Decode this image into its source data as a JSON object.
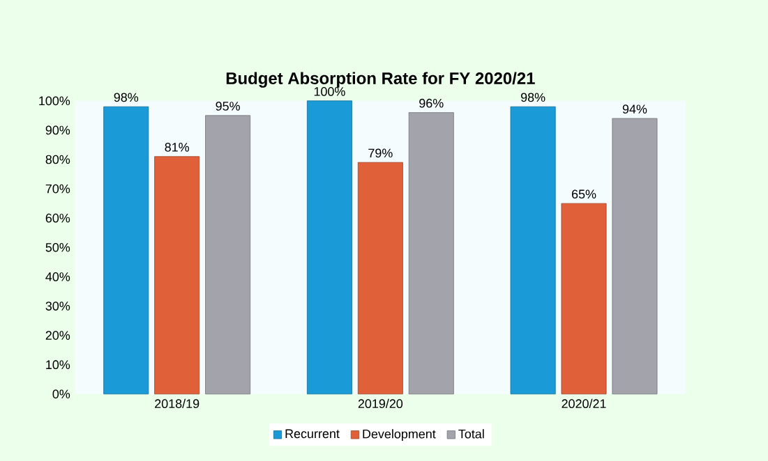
{
  "chart_data": {
    "type": "bar",
    "title": "Budget Absorption Rate for FY 2020/21",
    "categories": [
      "2018/19",
      "2019/20",
      "2020/21"
    ],
    "series": [
      {
        "name": "Recurrent",
        "color": "#1a9ad6",
        "values": [
          98,
          100,
          98
        ],
        "value_labels": [
          "98%",
          "100%",
          "98%"
        ]
      },
      {
        "name": "Development",
        "color": "#e0603a",
        "values": [
          81,
          79,
          65
        ],
        "value_labels": [
          "81%",
          "79%",
          "65%"
        ]
      },
      {
        "name": "Total",
        "color": "#a3a3ab",
        "values": [
          95,
          96,
          94
        ],
        "value_labels": [
          "95%",
          "96%",
          "94%"
        ]
      }
    ],
    "ylim": [
      0,
      100
    ],
    "yticks": [
      {
        "value": 0,
        "label": "0%"
      },
      {
        "value": 10,
        "label": "10%"
      },
      {
        "value": 20,
        "label": "20%"
      },
      {
        "value": 30,
        "label": "30%"
      },
      {
        "value": 40,
        "label": "40%"
      },
      {
        "value": 50,
        "label": "50%"
      },
      {
        "value": 60,
        "label": "60%"
      },
      {
        "value": 70,
        "label": "70%"
      },
      {
        "value": 80,
        "label": "80%"
      },
      {
        "value": 90,
        "label": "90%"
      },
      {
        "value": 100,
        "label": "100%"
      }
    ],
    "legend": "bottom"
  }
}
